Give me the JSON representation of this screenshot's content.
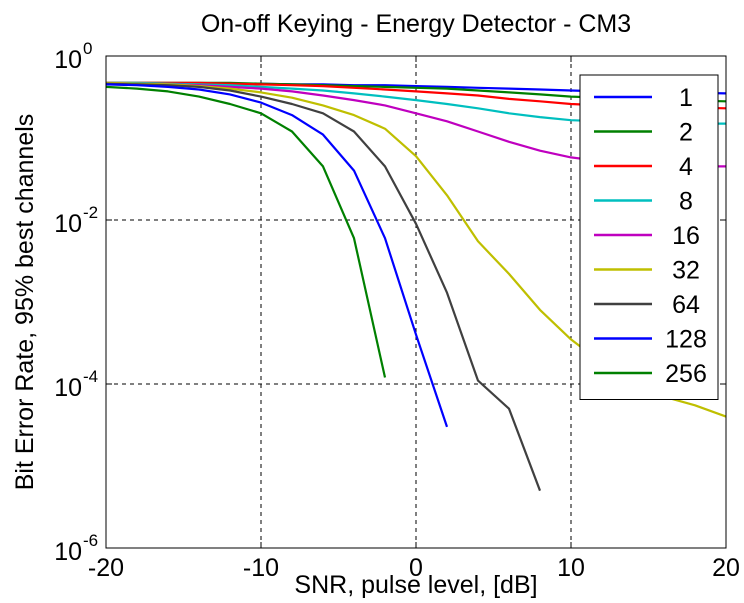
{
  "chart_data": {
    "type": "line",
    "title": "On-off Keying - Energy Detector - CM3",
    "xlabel": "SNR, pulse level, [dB]",
    "ylabel": "Bit Error Rate, 95% best channels",
    "xlim": [
      -20,
      20
    ],
    "ylim": [
      1e-06,
      1
    ],
    "yscale": "log",
    "grid": true,
    "legend_position": "top-right",
    "xticks": [
      {
        "value": -20,
        "label": "-20"
      },
      {
        "value": -10,
        "label": "-10"
      },
      {
        "value": 0,
        "label": "0"
      },
      {
        "value": 10,
        "label": "10"
      },
      {
        "value": 20,
        "label": "20"
      }
    ],
    "yticks": [
      {
        "value": 1e-06,
        "base": "10",
        "exp": "-6"
      },
      {
        "value": 0.0001,
        "base": "10",
        "exp": "-4"
      },
      {
        "value": 0.01,
        "base": "10",
        "exp": "-2"
      },
      {
        "value": 1,
        "base": "10",
        "exp": "0"
      }
    ],
    "series": [
      {
        "name": "1",
        "color": "#0000ff",
        "x": [
          -20,
          -18,
          -16,
          -14,
          -12,
          -10,
          -8,
          -6,
          -4,
          -2,
          0,
          2,
          4,
          6,
          8,
          10,
          12,
          14,
          16,
          18,
          20
        ],
        "y": [
          0.46,
          0.46,
          0.46,
          0.46,
          0.46,
          0.46,
          0.45,
          0.45,
          0.44,
          0.44,
          0.43,
          0.42,
          0.41,
          0.4,
          0.39,
          0.38,
          0.37,
          0.365,
          0.36,
          0.355,
          0.35
        ]
      },
      {
        "name": "2",
        "color": "#008000",
        "x": [
          -20,
          -18,
          -16,
          -14,
          -12,
          -10,
          -8,
          -6,
          -4,
          -2,
          0,
          2,
          4,
          6,
          8,
          10,
          12,
          14,
          16,
          18,
          20
        ],
        "y": [
          0.47,
          0.47,
          0.47,
          0.47,
          0.47,
          0.46,
          0.45,
          0.44,
          0.43,
          0.42,
          0.41,
          0.4,
          0.38,
          0.36,
          0.34,
          0.32,
          0.31,
          0.3,
          0.29,
          0.285,
          0.28
        ]
      },
      {
        "name": "4",
        "color": "#ff0000",
        "x": [
          -20,
          -18,
          -16,
          -14,
          -12,
          -10,
          -8,
          -6,
          -4,
          -2,
          0,
          2,
          4,
          6,
          8,
          10,
          12,
          14,
          16,
          18,
          20
        ],
        "y": [
          0.47,
          0.47,
          0.47,
          0.47,
          0.46,
          0.45,
          0.44,
          0.43,
          0.41,
          0.39,
          0.37,
          0.35,
          0.33,
          0.3,
          0.28,
          0.26,
          0.25,
          0.245,
          0.24,
          0.235,
          0.23
        ]
      },
      {
        "name": "8",
        "color": "#00bfbf",
        "x": [
          -20,
          -18,
          -16,
          -14,
          -12,
          -10,
          -8,
          -6,
          -4,
          -2,
          0,
          2,
          4,
          6,
          8,
          10,
          12,
          14,
          16,
          18,
          20
        ],
        "y": [
          0.47,
          0.47,
          0.46,
          0.45,
          0.44,
          0.42,
          0.4,
          0.38,
          0.35,
          0.32,
          0.29,
          0.26,
          0.23,
          0.2,
          0.18,
          0.165,
          0.16,
          0.155,
          0.15,
          0.15,
          0.15
        ]
      },
      {
        "name": "16",
        "color": "#bf00bf",
        "x": [
          -20,
          -18,
          -16,
          -14,
          -12,
          -10,
          -8,
          -6,
          -4,
          -2,
          0,
          2,
          4,
          6,
          8,
          10,
          12,
          14,
          16,
          18,
          20
        ],
        "y": [
          0.47,
          0.46,
          0.45,
          0.44,
          0.42,
          0.4,
          0.37,
          0.33,
          0.29,
          0.25,
          0.2,
          0.16,
          0.12,
          0.09,
          0.07,
          0.058,
          0.052,
          0.048,
          0.046,
          0.045,
          0.045
        ]
      },
      {
        "name": "32",
        "color": "#bfbf00",
        "x": [
          -20,
          -18,
          -16,
          -14,
          -12,
          -10,
          -8,
          -6,
          -4,
          -2,
          0,
          2,
          4,
          6,
          8,
          10,
          12,
          14,
          16,
          18,
          20
        ],
        "y": [
          0.47,
          0.46,
          0.45,
          0.43,
          0.4,
          0.36,
          0.31,
          0.25,
          0.19,
          0.13,
          0.06,
          0.02,
          0.0055,
          0.0022,
          0.0008,
          0.00035,
          0.00018,
          0.0001,
          7e-05,
          5.5e-05,
          4e-05
        ]
      },
      {
        "name": "64",
        "color": "#404040",
        "x": [
          -20,
          -18,
          -16,
          -14,
          -12,
          -10,
          -8,
          -6,
          -4,
          -2,
          0,
          2,
          4,
          6,
          8
        ],
        "y": [
          0.46,
          0.45,
          0.44,
          0.42,
          0.38,
          0.32,
          0.26,
          0.2,
          0.12,
          0.045,
          0.009,
          0.0013,
          0.00011,
          5e-05,
          5e-06
        ]
      },
      {
        "name": "128",
        "color": "#0000ff",
        "x": [
          -20,
          -18,
          -16,
          -14,
          -12,
          -10,
          -8,
          -6,
          -4,
          -2,
          0,
          2
        ],
        "y": [
          0.45,
          0.44,
          0.42,
          0.39,
          0.34,
          0.27,
          0.19,
          0.11,
          0.04,
          0.006,
          0.0004,
          3e-05
        ]
      },
      {
        "name": "256",
        "color": "#008000",
        "x": [
          -20,
          -18,
          -16,
          -14,
          -12,
          -10,
          -8,
          -6,
          -4,
          -2
        ],
        "y": [
          0.42,
          0.4,
          0.37,
          0.32,
          0.26,
          0.2,
          0.12,
          0.045,
          0.006,
          0.00012
        ]
      }
    ]
  }
}
